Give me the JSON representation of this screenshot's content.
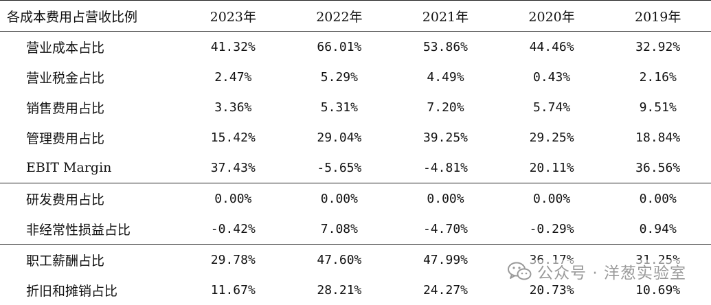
{
  "table": {
    "header": {
      "label": "各成本费用占营收比例",
      "years": [
        "2023年",
        "2022年",
        "2021年",
        "2020年",
        "2019年"
      ]
    },
    "rows": [
      {
        "label": "营业成本占比",
        "values": [
          "41.32%",
          "66.01%",
          "53.86%",
          "44.46%",
          "32.92%"
        ]
      },
      {
        "label": "营业税金占比",
        "values": [
          "2.47%",
          "5.29%",
          "4.49%",
          "0.43%",
          "2.16%"
        ]
      },
      {
        "label": "销售费用占比",
        "values": [
          "3.36%",
          "5.31%",
          "7.20%",
          "5.74%",
          "9.51%"
        ]
      },
      {
        "label": "管理费用占比",
        "values": [
          "15.42%",
          "29.04%",
          "39.25%",
          "29.25%",
          "18.84%"
        ]
      },
      {
        "label": "EBIT Margin",
        "values": [
          "37.43%",
          "-5.65%",
          "-4.81%",
          "20.11%",
          "36.56%"
        ]
      },
      {
        "label": "研发费用占比",
        "values": [
          "0.00%",
          "0.00%",
          "0.00%",
          "0.00%",
          "0.00%"
        ]
      },
      {
        "label": "非经常性损益占比",
        "values": [
          "-0.42%",
          "7.08%",
          "-4.70%",
          "-0.29%",
          "0.94%"
        ]
      },
      {
        "label": "职工薪酬占比",
        "values": [
          "29.78%",
          "47.60%",
          "47.99%",
          "36.17%",
          "31.25%"
        ]
      },
      {
        "label": "折旧和摊销占比",
        "values": [
          "11.67%",
          "28.21%",
          "24.27%",
          "20.73%",
          "10.69%"
        ]
      }
    ]
  },
  "watermark": {
    "text": "公众号 · 洋葱实验室",
    "icon": "wechat-icon",
    "color": "#9a9a9a"
  }
}
